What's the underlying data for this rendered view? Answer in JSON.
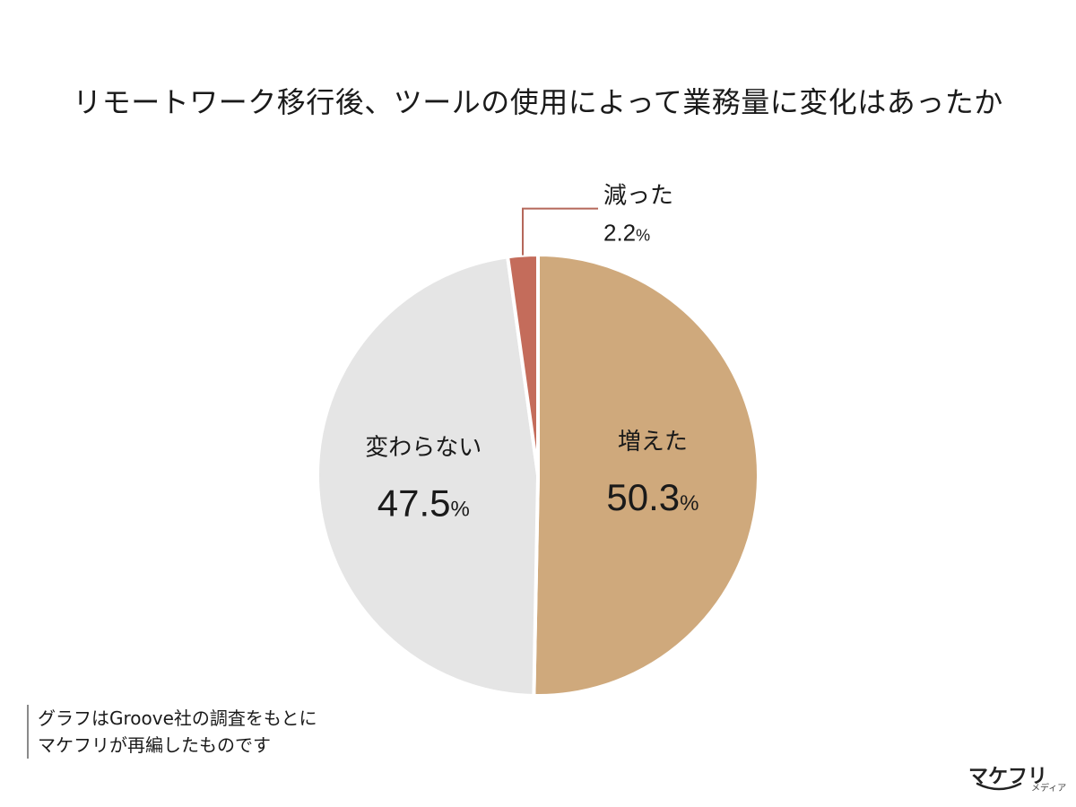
{
  "title": "リモートワーク移行後、ツールの使用によって業務量に変化はあったか",
  "chart_data": {
    "type": "pie",
    "title": "リモートワーク移行後、ツールの使用によって業務量に変化はあったか",
    "start": "12 o'clock",
    "direction": "clockwise",
    "slices": [
      {
        "label": "増えた",
        "value": 50.3,
        "display": "50.3",
        "unit": "%",
        "color": "#cfa97c"
      },
      {
        "label": "変わらない",
        "value": 47.5,
        "display": "47.5",
        "unit": "%",
        "color": "#e5e5e5"
      },
      {
        "label": "減った",
        "value": 2.2,
        "display": "2.2",
        "unit": "%",
        "color": "#c46c5b"
      }
    ],
    "leader_line_color": "#b5675a"
  },
  "source_note": {
    "line1": "グラフはGroove社の調査をもとに",
    "line2": "マケフリが再編したものです"
  },
  "logo": {
    "main": "マケフリ",
    "sub": "メディア"
  }
}
